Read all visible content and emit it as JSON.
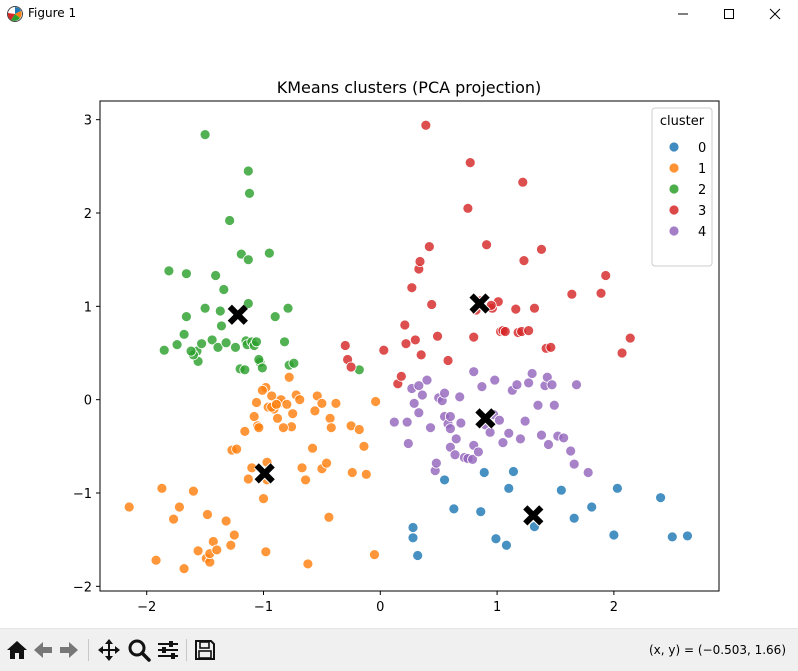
{
  "window": {
    "title": "Figure 1",
    "icons": {
      "app": "matplotlib-figure-icon",
      "minimize": "minimize-icon",
      "maximize": "maximize-icon",
      "close": "close-icon"
    }
  },
  "toolbar": {
    "buttons": [
      "home-icon",
      "back-arrow-icon",
      "forward-arrow-icon",
      "pan-move-icon",
      "zoom-magnifier-icon",
      "subplot-config-icon",
      "save-floppy-icon"
    ],
    "coords": "(x, y) = (−0.503, 1.66)"
  },
  "chart_data": {
    "type": "scatter",
    "title": "KMeans clusters (PCA projection)",
    "xlabel": "",
    "ylabel": "",
    "xlim": [
      -2.4,
      2.9
    ],
    "ylim": [
      -2.05,
      3.2
    ],
    "xticks": [
      -2,
      -1,
      0,
      1,
      2
    ],
    "xtick_labels": [
      "−2",
      "−1",
      "0",
      "1",
      "2"
    ],
    "yticks": [
      -2,
      -1,
      0,
      1,
      2,
      3
    ],
    "ytick_labels": [
      "−2",
      "−1",
      "0",
      "1",
      "2",
      "3"
    ],
    "grid": false,
    "legend": {
      "title": "cluster",
      "placement": "top-right",
      "labels": [
        "0",
        "1",
        "2",
        "3",
        "4"
      ]
    },
    "series": [
      {
        "name": "0",
        "color": "#1f77b4",
        "points": [
          [
            0.28,
            -1.37
          ],
          [
            0.28,
            -1.48
          ],
          [
            0.32,
            -1.67
          ],
          [
            0.55,
            -0.86
          ],
          [
            0.63,
            -1.17
          ],
          [
            0.86,
            -1.2
          ],
          [
            0.89,
            -0.78
          ],
          [
            0.99,
            -1.49
          ],
          [
            1.08,
            -1.56
          ],
          [
            1.1,
            -0.95
          ],
          [
            1.14,
            -0.77
          ],
          [
            1.32,
            -1.36
          ],
          [
            1.55,
            -0.97
          ],
          [
            1.66,
            -1.27
          ],
          [
            1.81,
            -1.15
          ],
          [
            2.0,
            -1.45
          ],
          [
            2.03,
            -0.95
          ],
          [
            2.4,
            -1.05
          ],
          [
            2.5,
            -1.47
          ],
          [
            2.63,
            -1.46
          ]
        ]
      },
      {
        "name": "1",
        "color": "#ff7f0e",
        "points": [
          [
            -2.15,
            -1.15
          ],
          [
            -1.92,
            -1.72
          ],
          [
            -1.87,
            -0.95
          ],
          [
            -1.77,
            -1.28
          ],
          [
            -1.72,
            -1.15
          ],
          [
            -1.68,
            -1.81
          ],
          [
            -1.6,
            -0.98
          ],
          [
            -1.56,
            -1.62
          ],
          [
            -1.49,
            -1.7
          ],
          [
            -1.48,
            -1.23
          ],
          [
            -1.46,
            -1.74
          ],
          [
            -1.46,
            -1.65
          ],
          [
            -1.43,
            -1.52
          ],
          [
            -1.4,
            -1.61
          ],
          [
            -1.32,
            -1.3
          ],
          [
            -1.28,
            -1.56
          ],
          [
            -1.27,
            -0.54
          ],
          [
            -1.25,
            -1.45
          ],
          [
            -1.23,
            -0.53
          ],
          [
            -1.16,
            -0.34
          ],
          [
            -1.13,
            -0.85
          ],
          [
            -1.1,
            -0.73
          ],
          [
            -1.08,
            -0.18
          ],
          [
            -1.05,
            -0.28
          ],
          [
            -1.04,
            -0.3
          ],
          [
            -1.0,
            -1.06
          ],
          [
            -0.98,
            0.13
          ],
          [
            -0.97,
            -0.67
          ],
          [
            -0.96,
            -0.08
          ],
          [
            -0.93,
            0.04
          ],
          [
            -0.91,
            -0.1
          ],
          [
            -0.88,
            -0.2
          ],
          [
            -0.87,
            -0.04
          ],
          [
            -0.85,
            0.0
          ],
          [
            -0.8,
            -0.05
          ],
          [
            -0.78,
            0.24
          ],
          [
            -0.75,
            -0.15
          ],
          [
            -0.72,
            0.05
          ],
          [
            -0.69,
            -0.0
          ],
          [
            -0.67,
            -0.73
          ],
          [
            -0.64,
            -0.86
          ],
          [
            -0.62,
            -1.76
          ],
          [
            -0.58,
            -0.52
          ],
          [
            -0.56,
            -0.12
          ],
          [
            -0.54,
            0.04
          ],
          [
            -0.5,
            -0.74
          ],
          [
            -0.5,
            -0.04
          ],
          [
            -0.46,
            -0.68
          ],
          [
            -0.44,
            -1.26
          ],
          [
            -0.43,
            -0.2
          ],
          [
            -0.42,
            -0.3
          ],
          [
            -0.38,
            -0.04
          ],
          [
            -0.25,
            -0.28
          ],
          [
            -0.24,
            -0.78
          ],
          [
            -0.18,
            -0.32
          ],
          [
            -0.14,
            -0.5
          ],
          [
            -0.12,
            -0.8
          ],
          [
            -0.04,
            -0.02
          ],
          [
            -0.05,
            -1.66
          ],
          [
            -0.97,
            -0.86
          ],
          [
            -0.98,
            -1.63
          ],
          [
            -0.93,
            -0.08
          ],
          [
            -0.76,
            -0.29
          ],
          [
            -0.83,
            -0.3
          ],
          [
            -1.01,
            0.1
          ],
          [
            -0.89,
            -0.05
          ],
          [
            -1.06,
            -0.03
          ]
        ]
      },
      {
        "name": "2",
        "color": "#2ca02c",
        "points": [
          [
            -1.85,
            0.53
          ],
          [
            -1.81,
            1.38
          ],
          [
            -1.74,
            0.59
          ],
          [
            -1.68,
            0.7
          ],
          [
            -1.66,
            1.35
          ],
          [
            -1.66,
            0.89
          ],
          [
            -1.56,
            0.41
          ],
          [
            -1.57,
            0.52
          ],
          [
            -1.53,
            0.6
          ],
          [
            -1.5,
            0.98
          ],
          [
            -1.5,
            2.84
          ],
          [
            -1.44,
            0.64
          ],
          [
            -1.41,
            1.33
          ],
          [
            -1.39,
            0.56
          ],
          [
            -1.37,
            0.95
          ],
          [
            -1.36,
            0.79
          ],
          [
            -1.34,
            1.18
          ],
          [
            -1.32,
            0.61
          ],
          [
            -1.29,
            1.92
          ],
          [
            -1.24,
            0.56
          ],
          [
            -1.2,
            0.33
          ],
          [
            -1.19,
            1.56
          ],
          [
            -1.16,
            0.32
          ],
          [
            -1.15,
            0.63
          ],
          [
            -1.14,
            0.59
          ],
          [
            -1.13,
            1.03
          ],
          [
            -1.13,
            1.5
          ],
          [
            -1.13,
            2.45
          ],
          [
            -1.12,
            2.21
          ],
          [
            -1.1,
            0.62
          ],
          [
            -1.08,
            0.58
          ],
          [
            -1.06,
            0.62
          ],
          [
            -1.03,
            0.4
          ],
          [
            -1.04,
            0.43
          ],
          [
            -1.01,
            0.34
          ],
          [
            -0.95,
            1.57
          ],
          [
            -0.9,
            0.89
          ],
          [
            -0.82,
            0.62
          ],
          [
            -0.78,
            0.37
          ],
          [
            -0.74,
            0.39
          ],
          [
            -0.79,
            0.98
          ],
          [
            -0.18,
            0.32
          ],
          [
            -1.6,
            0.48
          ],
          [
            -1.62,
            0.52
          ]
        ]
      },
      {
        "name": "3",
        "color": "#d62728",
        "points": [
          [
            -0.3,
            0.58
          ],
          [
            -0.28,
            0.43
          ],
          [
            -0.25,
            0.35
          ],
          [
            0.03,
            0.53
          ],
          [
            0.15,
            0.17
          ],
          [
            0.18,
            0.25
          ],
          [
            0.21,
            0.8
          ],
          [
            0.22,
            0.6
          ],
          [
            0.27,
            1.2
          ],
          [
            0.3,
            0.64
          ],
          [
            0.33,
            1.4
          ],
          [
            0.34,
            1.48
          ],
          [
            0.35,
            0.48
          ],
          [
            0.39,
            2.94
          ],
          [
            0.42,
            1.64
          ],
          [
            0.44,
            1.02
          ],
          [
            0.49,
            0.68
          ],
          [
            0.58,
            0.42
          ],
          [
            0.75,
            2.05
          ],
          [
            0.77,
            2.54
          ],
          [
            0.8,
            0.67
          ],
          [
            0.82,
            0.96
          ],
          [
            0.86,
            1.06
          ],
          [
            0.91,
            1.66
          ],
          [
            0.96,
            0.98
          ],
          [
            1.01,
            1.05
          ],
          [
            1.03,
            0.73
          ],
          [
            1.05,
            0.74
          ],
          [
            1.07,
            0.73
          ],
          [
            1.16,
            0.97
          ],
          [
            1.18,
            0.72
          ],
          [
            1.21,
            0.73
          ],
          [
            1.22,
            2.33
          ],
          [
            1.23,
            1.49
          ],
          [
            1.27,
            0.74
          ],
          [
            1.32,
            0.98
          ],
          [
            1.38,
            1.61
          ],
          [
            1.42,
            0.55
          ],
          [
            1.64,
            1.13
          ],
          [
            1.89,
            1.14
          ],
          [
            1.93,
            1.33
          ],
          [
            2.07,
            0.5
          ],
          [
            2.14,
            0.66
          ],
          [
            1.46,
            0.56
          ],
          [
            0.95,
            1.01
          ]
        ]
      },
      {
        "name": "4",
        "color": "#9467bd",
        "points": [
          [
            0.12,
            -0.24
          ],
          [
            0.23,
            -0.24
          ],
          [
            0.24,
            -0.47
          ],
          [
            0.27,
            0.12
          ],
          [
            0.29,
            -0.04
          ],
          [
            0.33,
            0.15
          ],
          [
            0.33,
            -0.14
          ],
          [
            0.36,
            0.05
          ],
          [
            0.4,
            0.21
          ],
          [
            0.43,
            -0.3
          ],
          [
            0.47,
            -0.76
          ],
          [
            0.48,
            -0.68
          ],
          [
            0.5,
            0.02
          ],
          [
            0.53,
            -0.01
          ],
          [
            0.55,
            0.07
          ],
          [
            0.55,
            -0.18
          ],
          [
            0.58,
            -0.26
          ],
          [
            0.6,
            -0.51
          ],
          [
            0.6,
            -0.31
          ],
          [
            0.64,
            -0.59
          ],
          [
            0.65,
            -0.42
          ],
          [
            0.68,
            0.03
          ],
          [
            0.69,
            -0.25
          ],
          [
            0.72,
            -0.62
          ],
          [
            0.75,
            -0.63
          ],
          [
            0.79,
            -0.64
          ],
          [
            0.8,
            -0.49
          ],
          [
            0.84,
            -0.56
          ],
          [
            0.8,
            0.3
          ],
          [
            0.87,
            0.14
          ],
          [
            0.9,
            -0.27
          ],
          [
            0.94,
            -0.35
          ],
          [
            0.97,
            -0.16
          ],
          [
            1.02,
            -0.22
          ],
          [
            1.05,
            -0.46
          ],
          [
            1.1,
            -0.36
          ],
          [
            1.13,
            0.1
          ],
          [
            1.17,
            0.16
          ],
          [
            1.2,
            -0.42
          ],
          [
            1.24,
            -0.23
          ],
          [
            1.27,
            0.18
          ],
          [
            1.3,
            0.28
          ],
          [
            1.35,
            -0.06
          ],
          [
            1.38,
            -0.38
          ],
          [
            1.41,
            0.15
          ],
          [
            1.43,
            0.24
          ],
          [
            1.44,
            -0.48
          ],
          [
            1.47,
            0.16
          ],
          [
            1.49,
            -0.06
          ],
          [
            1.52,
            -0.39
          ],
          [
            1.57,
            -0.41
          ],
          [
            1.63,
            -0.55
          ],
          [
            1.68,
            0.16
          ],
          [
            1.66,
            -0.69
          ],
          [
            1.78,
            -0.78
          ],
          [
            0.98,
            0.21
          ],
          [
            0.6,
            -0.18
          ]
        ]
      }
    ],
    "centroids": {
      "marker": "X",
      "color": "#000000",
      "points": [
        [
          1.31,
          -1.24
        ],
        [
          -0.99,
          -0.79
        ],
        [
          -1.22,
          0.91
        ],
        [
          0.85,
          1.03
        ],
        [
          0.9,
          -0.2
        ]
      ]
    }
  }
}
